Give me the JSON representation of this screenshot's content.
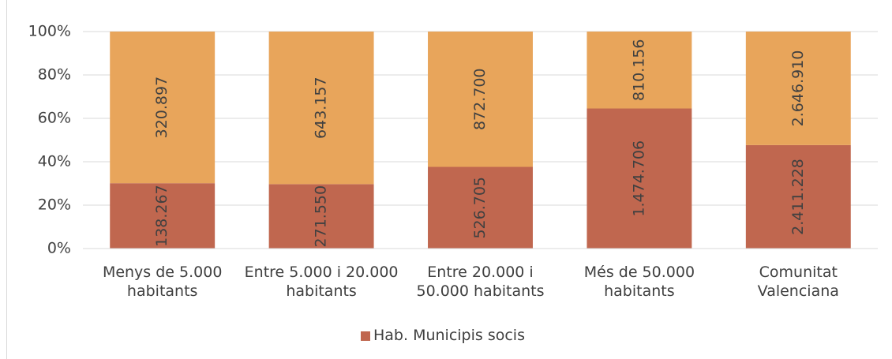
{
  "chart_data": {
    "type": "bar",
    "stacking": "percent",
    "categories": [
      "Menys de 5.000 habitants",
      "Entre 5.000 i 20.000 habitants",
      "Entre 20.000 i 50.000 habitants",
      "Més de 50.000 habitants",
      "Comunitat Valenciana"
    ],
    "series": [
      {
        "name": "Hab. Municipis socis",
        "color": "#c0674f",
        "values": [
          138267,
          271550,
          526705,
          1474706,
          2411228
        ],
        "value_labels": [
          "138.267",
          "271.550",
          "526.705",
          "1.474.706",
          "2.411.228"
        ]
      },
      {
        "color": "#e8a55b",
        "values": [
          320897,
          643157,
          872700,
          810156,
          2646910
        ],
        "value_labels": [
          "320.897",
          "643.157",
          "872.700",
          "810.156",
          "2.646.910"
        ]
      }
    ],
    "ylim": [
      0,
      100
    ],
    "yticks": [
      {
        "value": 0,
        "label": "0%"
      },
      {
        "value": 20,
        "label": "20%"
      },
      {
        "value": 40,
        "label": "40%"
      },
      {
        "value": 60,
        "label": "60%"
      },
      {
        "value": 80,
        "label": "80%"
      },
      {
        "value": 100,
        "label": "100%"
      }
    ],
    "grid": true,
    "legend": "bottom"
  }
}
